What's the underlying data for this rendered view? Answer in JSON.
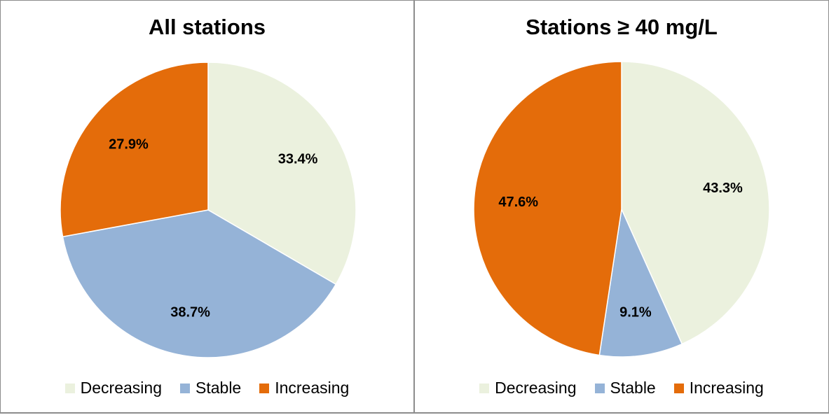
{
  "colors": {
    "decreasing": "#ebf1de",
    "stable": "#95b3d7",
    "increasing": "#e46c0a",
    "stroke": "#ffffff"
  },
  "chart_data": [
    {
      "type": "pie",
      "title": "All stations",
      "categories": [
        "Decreasing",
        "Stable",
        "Increasing"
      ],
      "values": [
        33.4,
        38.7,
        27.9
      ],
      "value_labels": [
        "33.4%",
        "38.7%",
        "27.9%"
      ],
      "legend": "bottom"
    },
    {
      "type": "pie",
      "title": "Stations ≥ 40 mg/L",
      "categories": [
        "Decreasing",
        "Stable",
        "Increasing"
      ],
      "values": [
        43.3,
        9.1,
        47.6
      ],
      "value_labels": [
        "43.3%",
        "9.1%",
        "47.6%"
      ],
      "legend": "bottom"
    }
  ]
}
